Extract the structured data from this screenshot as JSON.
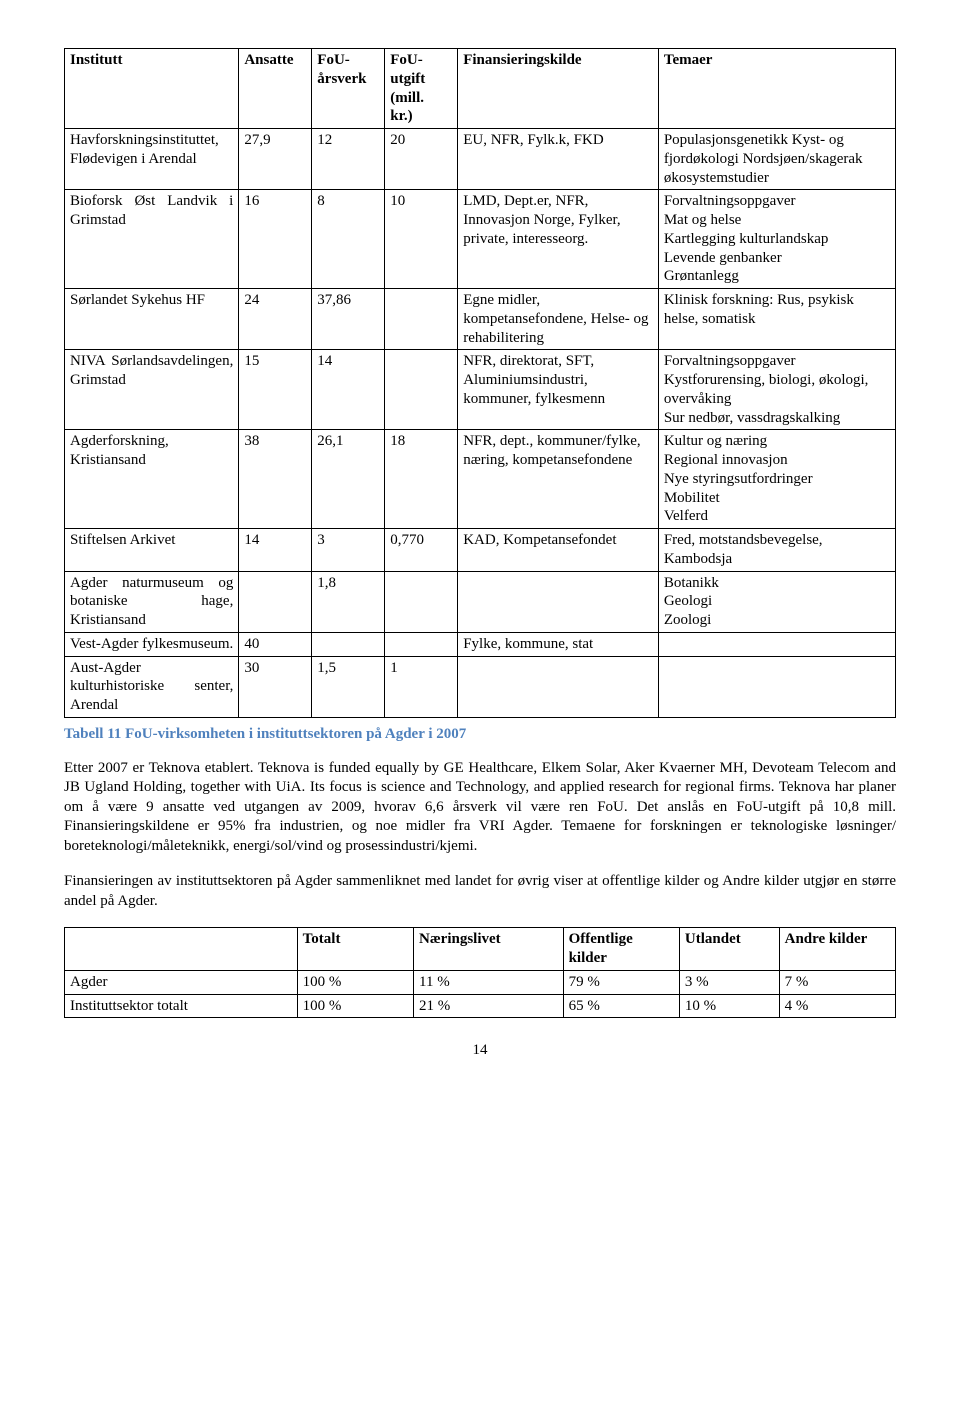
{
  "table1": {
    "headers": [
      "Institutt",
      "Ansatte",
      "FoU-\nårsverk",
      "FoU-\nutgift\n(mill.\nkr.)",
      "Finansieringskilde",
      "Temaer"
    ],
    "rows": [
      [
        "Havforskningsinstituttet, Flødevigen i Arendal",
        "27,9",
        "12",
        "20",
        "EU, NFR, Fylk.k, FKD",
        "Populasjonsgenetikk Kyst- og fjordøkologi Nordsjøen/skagerak økosystemstudier"
      ],
      [
        "Bioforsk Øst Landvik i Grimstad",
        "16",
        "8",
        "10",
        "LMD, Dept.er, NFR, Innovasjon Norge, Fylker, private, interesseorg.",
        "Forvaltningsoppgaver\nMat og helse\nKartlegging kulturlandskap\nLevende genbanker\nGrøntanlegg"
      ],
      [
        "Sørlandet Sykehus HF",
        "24",
        "37,86",
        "",
        "Egne midler, kompetansefondene, Helse- og rehabilitering",
        "Klinisk forskning: Rus, psykisk helse, somatisk"
      ],
      [
        "NIVA Sørlandsavdelingen, Grimstad",
        "15",
        "14",
        "",
        "NFR, direktorat, SFT, Aluminiumsindustri, kommuner, fylkesmenn",
        "Forvaltningsoppgaver Kystforurensing, biologi, økologi, overvåking\nSur nedbør, vassdragskalking"
      ],
      [
        "Agderforskning, Kristiansand",
        "38",
        "26,1",
        "18",
        "NFR, dept., kommuner/fylke, næring, kompetansefondene",
        "Kultur og næring\nRegional innovasjon\nNye styringsutfordringer\nMobilitet\nVelferd"
      ],
      [
        "Stiftelsen Arkivet",
        "14",
        "3",
        "0,770",
        "KAD, Kompetansefondet",
        "Fred, motstandsbevegelse, Kambodsja"
      ],
      [
        "Agder naturmuseum og botaniske hage, Kristiansand",
        "",
        "1,8",
        "",
        "",
        "Botanikk\nGeologi\nZoologi"
      ],
      [
        "Vest-Agder fylkesmuseum.",
        "40",
        "",
        "",
        "Fylke, kommune, stat",
        ""
      ],
      [
        "Aust-Agder kulturhistoriske senter, Arendal",
        "30",
        "1,5",
        "1",
        "",
        ""
      ]
    ]
  },
  "caption1": "Tabell 11 FoU-virksomheten i instituttsektoren på Agder i 2007",
  "para1": "Etter 2007 er Teknova etablert. Teknova is funded equally by GE Healthcare, Elkem Solar, Aker Kvaerner MH, Devoteam Telecom and JB Ugland Holding, together with UiA. Its focus is science and Technology, and applied research for regional firms. Teknova har planer om å være 9 ansatte ved utgangen av 2009, hvorav 6,6 årsverk vil være ren FoU. Det anslås en FoU-utgift på 10,8 mill. Finansieringskildene er 95% fra industrien, og noe midler fra VRI Agder. Temaene for forskningen er teknologiske løsninger/ boreteknologi/måleteknikk, energi/sol/vind og prosessindustri/kjemi.",
  "para2": "Finansieringen av instituttsektoren på Agder sammenliknet med landet for øvrig viser at offentlige kilder og Andre kilder utgjør en større andel på Agder.",
  "table2": {
    "headers": [
      "",
      "Totalt",
      "Næringslivet",
      "Offentlige kilder",
      "Utlandet",
      "Andre kilder"
    ],
    "rows": [
      [
        "Agder",
        "100 %",
        "11 %",
        "79 %",
        "3 %",
        "7 %"
      ],
      [
        "Instituttsektor totalt",
        "100 %",
        "21 %",
        "65 %",
        "10 %",
        "4 %"
      ]
    ]
  },
  "pageNumber": "14"
}
